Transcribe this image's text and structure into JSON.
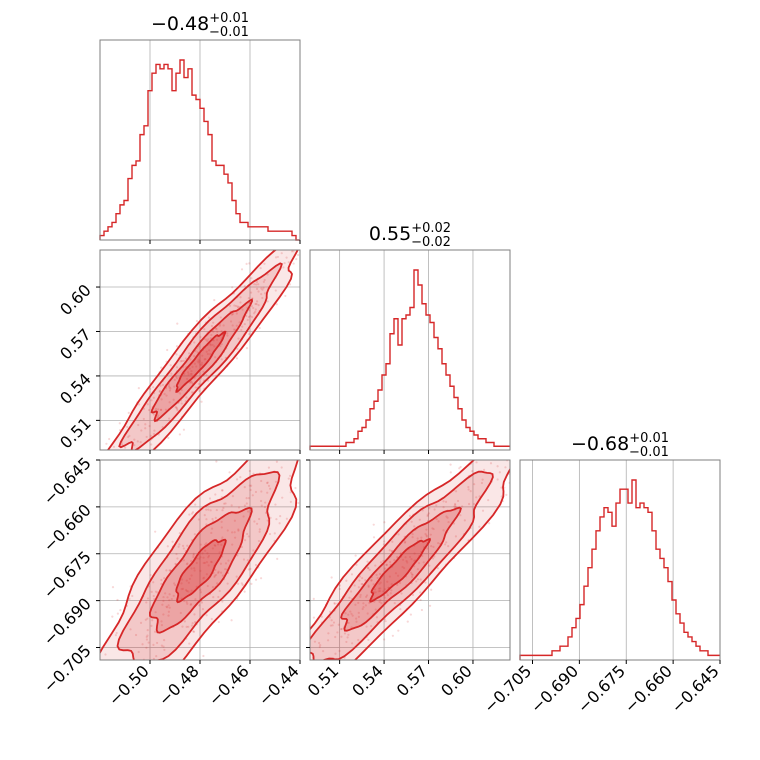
{
  "chart_data": {
    "type": "corner",
    "color": "#d62728",
    "params": [
      {
        "median": -0.48,
        "err_plus": 0.01,
        "err_minus": 0.01,
        "title": "−0.48",
        "title_plus": "+0.01",
        "title_minus": "−0.01",
        "range": [
          -0.52,
          -0.44
        ],
        "ticks": [
          -0.5,
          -0.48,
          -0.46,
          -0.44
        ],
        "tick_labels": [
          "−0.50",
          "−0.48",
          "−0.46",
          "−0.44"
        ]
      },
      {
        "median": 0.55,
        "err_plus": 0.02,
        "err_minus": 0.02,
        "title": "0.55",
        "title_plus": "+0.02",
        "title_minus": "−0.02",
        "range": [
          0.49,
          0.625
        ],
        "ticks": [
          0.51,
          0.54,
          0.57,
          0.6
        ],
        "tick_labels": [
          "0.51",
          "0.54",
          "0.57",
          "0.60"
        ]
      },
      {
        "median": -0.68,
        "err_plus": 0.01,
        "err_minus": 0.01,
        "title": "−0.68",
        "title_plus": "+0.01",
        "title_minus": "−0.01",
        "range": [
          -0.709,
          -0.645
        ],
        "ticks": [
          -0.705,
          -0.69,
          -0.675,
          -0.66,
          -0.645
        ],
        "tick_labels": [
          "−0.705",
          "−0.690",
          "−0.675",
          "−0.660",
          "−0.645"
        ]
      }
    ],
    "histograms": [
      {
        "param": 0,
        "counts": [
          1,
          2,
          3,
          4,
          6,
          8,
          9,
          14,
          17,
          18,
          24,
          26,
          34,
          38,
          40,
          39,
          40,
          39,
          34,
          38,
          41,
          37,
          39,
          33,
          32,
          30,
          27,
          24,
          18,
          17,
          17,
          15,
          13,
          9,
          6,
          4,
          4,
          3,
          3,
          3,
          3,
          3,
          2,
          2,
          2,
          2,
          2,
          2,
          1,
          0
        ]
      },
      {
        "param": 1,
        "counts": [
          1,
          1,
          1,
          1,
          1,
          1,
          1,
          1,
          1,
          2,
          2,
          3,
          5,
          6,
          8,
          11,
          13,
          16,
          20,
          23,
          31,
          35,
          28,
          35,
          36,
          38,
          48,
          44,
          39,
          36,
          34,
          30,
          27,
          23,
          20,
          17,
          14,
          11,
          8,
          6,
          5,
          4,
          3,
          3,
          2,
          2,
          1,
          1,
          1,
          1
        ]
      },
      {
        "param": 2,
        "counts": [
          1,
          1,
          1,
          1,
          1,
          1,
          1,
          1,
          2,
          2,
          3,
          3,
          5,
          7,
          9,
          12,
          16,
          20,
          24,
          28,
          31,
          33,
          32,
          29,
          34,
          37,
          37,
          34,
          39,
          33,
          34,
          33,
          32,
          28,
          24,
          22,
          20,
          17,
          13,
          10,
          8,
          6,
          5,
          4,
          3,
          2,
          2,
          1,
          1,
          1
        ]
      }
    ],
    "pairs": [
      {
        "x_param": 0,
        "y_param": 1,
        "rho": 0.95
      },
      {
        "x_param": 0,
        "y_param": 2,
        "rho": 0.82
      },
      {
        "x_param": 1,
        "y_param": 2,
        "rho": 0.92
      }
    ],
    "grid": true
  }
}
